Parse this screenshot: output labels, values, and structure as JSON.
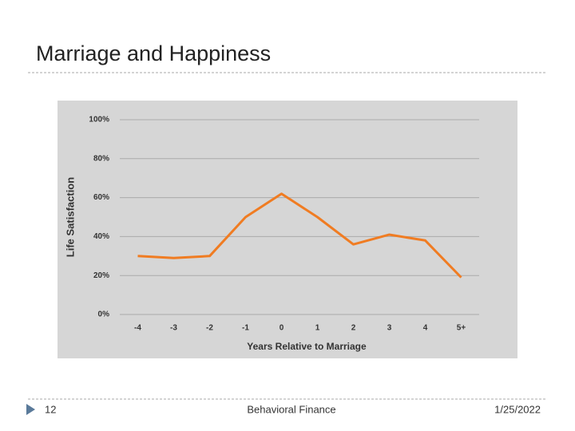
{
  "slide": {
    "title": "Marriage and Happiness",
    "page_number": "12",
    "footer": "Behavioral Finance",
    "date": "1/25/2022"
  },
  "chart_data": {
    "type": "line",
    "x_label": "Years Relative to Marriage",
    "y_label": "Life Satisfaction",
    "categories": [
      "-4",
      "-3",
      "-2",
      "-1",
      "0",
      "1",
      "2",
      "3",
      "4",
      "5+"
    ],
    "values": [
      30,
      29,
      30,
      50,
      62,
      50,
      36,
      41,
      38,
      19
    ],
    "color": "#f07c22",
    "ylim": [
      0,
      100
    ],
    "yticks": [
      {
        "value": 0,
        "label": "0%"
      },
      {
        "value": 20,
        "label": "20%"
      },
      {
        "value": 40,
        "label": "40%"
      },
      {
        "value": 60,
        "label": "60%"
      },
      {
        "value": 80,
        "label": "80%"
      },
      {
        "value": 100,
        "label": "100%"
      }
    ],
    "grid": true
  }
}
